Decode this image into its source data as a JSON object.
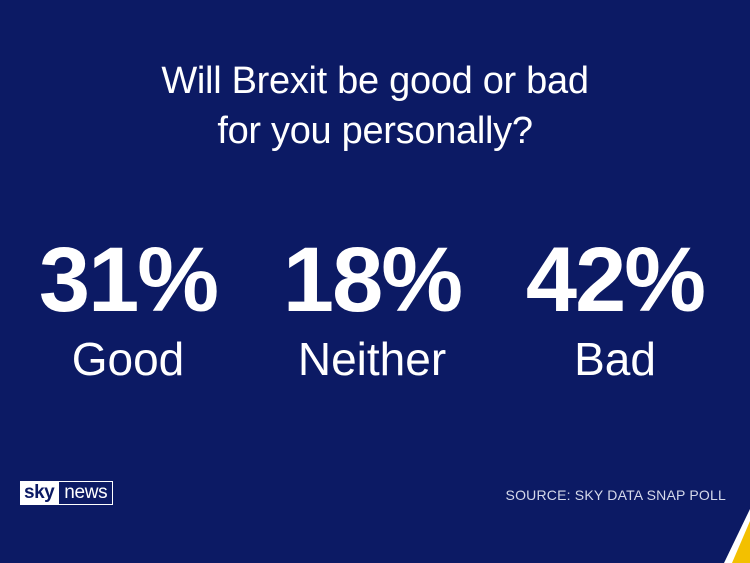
{
  "question": {
    "line1": "Will Brexit be good or bad",
    "line2": "for you personally?"
  },
  "results": [
    {
      "percent": "31%",
      "label": "Good"
    },
    {
      "percent": "18%",
      "label": "Neither"
    },
    {
      "percent": "42%",
      "label": "Bad"
    }
  ],
  "logo": {
    "sky": "sky",
    "news": "news"
  },
  "source": "SOURCE: SKY DATA SNAP POLL",
  "colors": {
    "background": "#0c1a64",
    "text": "#ffffff",
    "accent": "#f3c000"
  }
}
